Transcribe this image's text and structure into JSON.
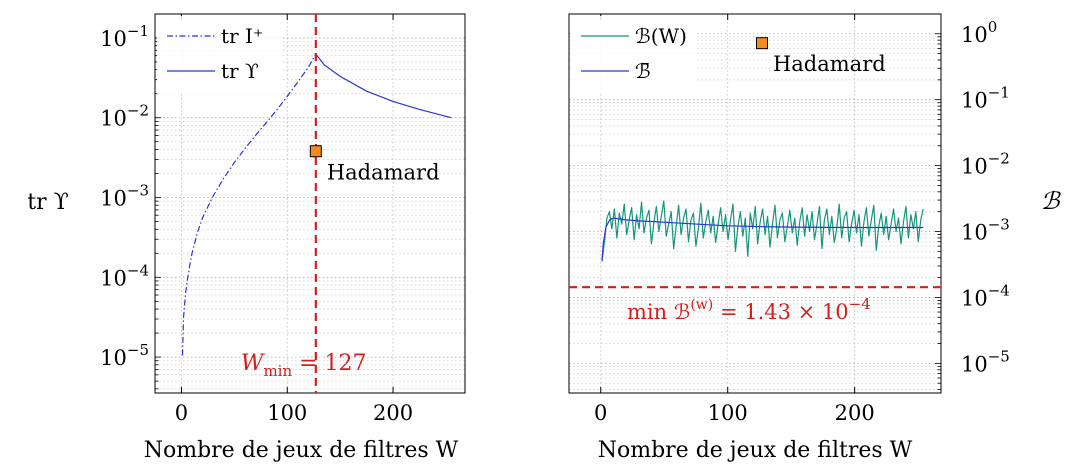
{
  "chart_data": [
    {
      "type": "line",
      "ylabel": "tr ϒ",
      "xlabel": "Nombre de jeux de filtres W",
      "xlim": [
        -25,
        268
      ],
      "ylim_log10": [
        -5.45,
        -0.7
      ],
      "y_scale": "log",
      "grid": true,
      "legend_position": "top-left",
      "xticks": [
        0,
        100,
        200
      ],
      "yticks": [
        {
          "mant": "10",
          "exp": "−1"
        },
        {
          "mant": "10",
          "exp": "−2"
        },
        {
          "mant": "10",
          "exp": "−3"
        },
        {
          "mant": "10",
          "exp": "−4"
        },
        {
          "mant": "10",
          "exp": "−5"
        }
      ],
      "series": [
        {
          "name": "tr I⁺",
          "color": "#2b35d8",
          "dash": "dashdot",
          "x": [
            1,
            2,
            4,
            6,
            8,
            10,
            15,
            20,
            30,
            40,
            50,
            60,
            70,
            80,
            90,
            100,
            110,
            120,
            127
          ],
          "y": [
            1.05e-05,
            3.2e-05,
            6.5e-05,
            0.0001,
            0.000145,
            0.0002,
            0.00036,
            0.00056,
            0.00105,
            0.00175,
            0.00275,
            0.0041,
            0.006,
            0.0086,
            0.0125,
            0.0185,
            0.028,
            0.043,
            0.063
          ]
        },
        {
          "name": "tr ϒ",
          "color": "#2b35d8",
          "dash": "solid",
          "x": [
            127,
            135,
            150,
            175,
            200,
            225,
            255
          ],
          "y": [
            0.063,
            0.046,
            0.033,
            0.0215,
            0.016,
            0.0127,
            0.01
          ]
        }
      ],
      "vline": {
        "x": 127,
        "color": "#d21f1f",
        "label_text": "W",
        "label_sub": "min",
        "label_rest": " = 127"
      },
      "marker": {
        "x": 127,
        "y": 0.0038,
        "label": "Hadamard",
        "color": "#f58a1f"
      }
    },
    {
      "type": "line",
      "ylabel": "ℬ",
      "xlabel": "Nombre de jeux de filtres W",
      "xlim": [
        -25,
        268
      ],
      "ylim_log10": [
        -5.45,
        0.3
      ],
      "y_scale": "log",
      "grid": true,
      "legend_position": "top-left",
      "xticks": [
        0,
        100,
        200
      ],
      "yticks": [
        {
          "mant": "10",
          "exp": "0"
        },
        {
          "mant": "10",
          "exp": "−1"
        },
        {
          "mant": "10",
          "exp": "−2"
        },
        {
          "mant": "10",
          "exp": "−3"
        },
        {
          "mant": "10",
          "exp": "−4"
        },
        {
          "mant": "10",
          "exp": "−5"
        }
      ],
      "series": [
        {
          "name": "ℬ(W)",
          "color": "#16957e",
          "dash": "solid",
          "x_start": 1,
          "x_end": 254,
          "center": 0.0012,
          "y_samples": [
            0.00035,
            0.0007,
            0.0016,
            0.002,
            0.0011,
            0.0022,
            0.0008,
            0.0019,
            0.0013,
            0.0026,
            0.0009,
            0.0015,
            0.0023,
            0.00075,
            0.0018,
            0.0011,
            0.0028,
            0.00095,
            0.0016,
            0.0021,
            0.00065,
            0.0014,
            0.0024,
            0.001,
            0.0017,
            0.0029,
            0.00085,
            0.0013,
            0.002,
            0.00055,
            0.0012,
            0.0025,
            0.0009,
            0.0016,
            0.0022,
            0.0007,
            0.0015,
            0.0019,
            0.0006,
            0.0011,
            0.0027,
            0.0008,
            0.0014,
            0.0021,
            0.00095,
            0.0017,
            0.00068,
            0.0013,
            0.0023,
            0.001,
            0.0018,
            0.00075,
            0.0015,
            0.0026,
            0.0005,
            0.0012,
            0.002,
            0.00085,
            0.0016,
            0.00042,
            0.0019,
            0.0011,
            0.0024,
            0.00065,
            0.0014,
            0.0022,
            0.0009,
            0.0017,
            0.00058,
            0.0013,
            0.0025,
            0.0008,
            0.0015,
            0.0019,
            0.0007,
            0.0012,
            0.0021,
            0.00095,
            0.0016,
            0.00062,
            0.0014,
            0.0023,
            0.00085,
            0.0018,
            0.001,
            0.002,
            0.00075,
            0.0013,
            0.0024,
            0.00055,
            0.0015,
            0.0022,
            0.0009,
            0.0017,
            0.00068,
            0.0011,
            0.0026,
            0.0008,
            0.0016,
            0.002,
            0.0007,
            0.0013,
            0.0021,
            0.00095,
            0.0018,
            0.0006,
            0.0014,
            0.0023,
            0.00085,
            0.0015,
            0.0025,
            0.00052,
            0.0012,
            0.0019,
            0.0009,
            0.0017,
            0.00075,
            0.0013,
            0.0022,
            0.001,
            0.0016,
            0.00065,
            0.0014,
            0.0024,
            0.0008,
            0.0018,
            0.0011,
            0.002,
            0.0007,
            0.0015
          ],
          "y_end": 0.0022
        },
        {
          "name": "ℬ̄",
          "color": "#2b35d8",
          "dash": "solid",
          "x": [
            1,
            2,
            4,
            7,
            10,
            15,
            20,
            30,
            40,
            60,
            80,
            100,
            130,
            160,
            200,
            254
          ],
          "y": [
            0.00036,
            0.00065,
            0.00115,
            0.0015,
            0.0016,
            0.00155,
            0.0015,
            0.00145,
            0.00142,
            0.00135,
            0.00128,
            0.00122,
            0.00118,
            0.00116,
            0.00115,
            0.00115
          ]
        }
      ],
      "hline": {
        "y": 0.000143,
        "color": "#d21f1f",
        "label_pre": "min ℬ",
        "label_sup": "(w)",
        "label_post": " = 1.43 × 10",
        "label_exp": "−4"
      },
      "marker": {
        "x": 127,
        "y": 0.72,
        "label": "Hadamard",
        "color": "#f58a1f"
      }
    }
  ]
}
